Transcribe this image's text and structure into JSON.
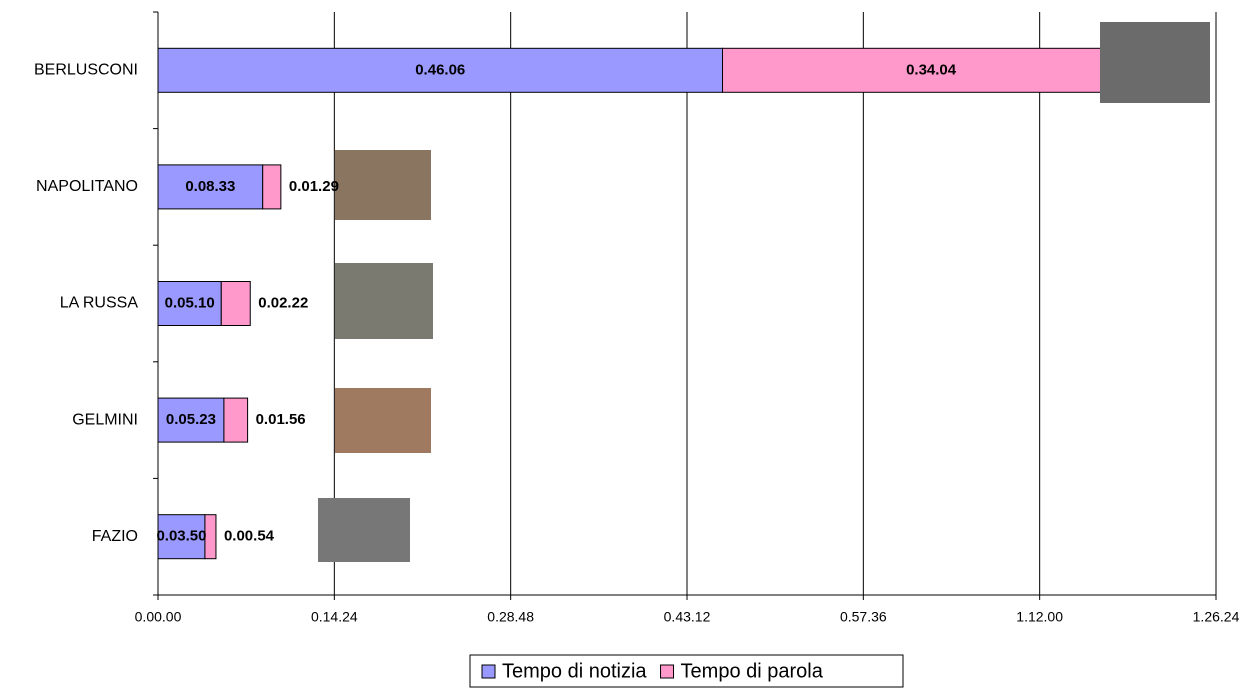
{
  "chart_data": {
    "type": "barh-stacked",
    "categories": [
      "BERLUSCONI",
      "NAPOLITANO",
      "LA RUSSA",
      "GELMINI",
      "FAZIO"
    ],
    "series": [
      {
        "name": "Tempo di notizia",
        "color": "#9999ff",
        "values": [
          2766,
          513,
          310,
          323,
          230
        ],
        "value_labels": [
          "0.46.06",
          "0.08.33",
          "0.05.10",
          "0.05.23",
          "0.03.50"
        ]
      },
      {
        "name": "Tempo di parola",
        "color": "#ff99cc",
        "values": [
          2044,
          89,
          142,
          116,
          54
        ],
        "value_labels": [
          "0.34.04",
          "0.01.29",
          "0.02.22",
          "0.01.56",
          "0.00.54"
        ]
      }
    ],
    "xlim": [
      0,
      5184
    ],
    "xticks": [
      {
        "value": 0,
        "label": "0.00.00"
      },
      {
        "value": 864,
        "label": "0.14.24"
      },
      {
        "value": 1728,
        "label": "0.28.48"
      },
      {
        "value": 2592,
        "label": "0.43.12"
      },
      {
        "value": 3456,
        "label": "0.57.36"
      },
      {
        "value": 4320,
        "label": "1.12.00"
      },
      {
        "value": 5184,
        "label": "1.26.24"
      }
    ],
    "grid": true
  }
}
